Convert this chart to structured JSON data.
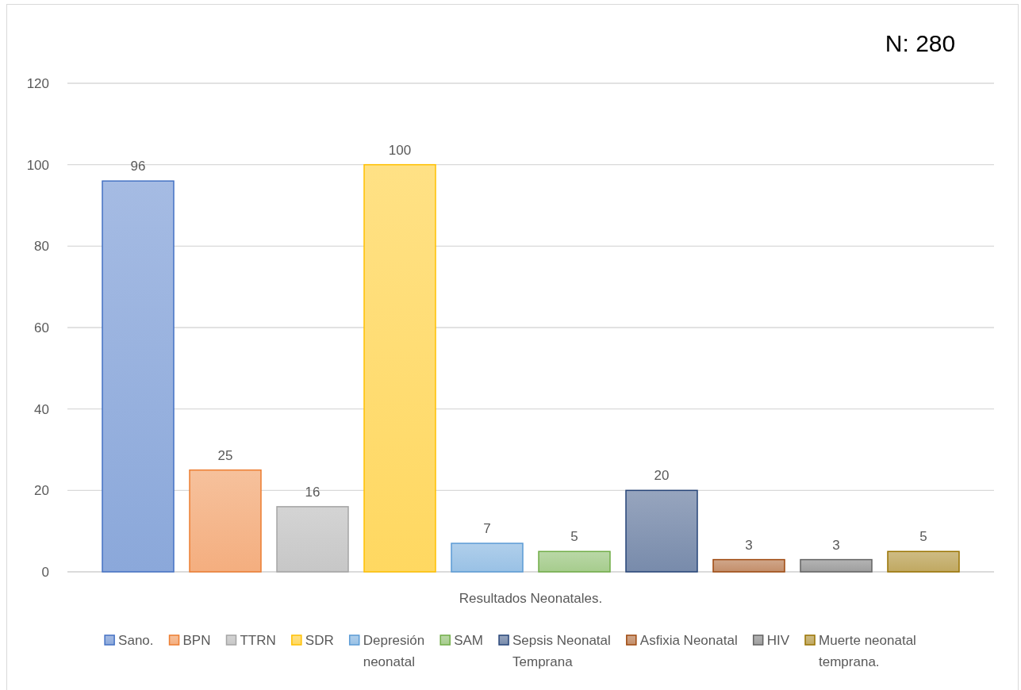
{
  "chart_data": {
    "type": "bar",
    "categories": [
      "Resultados Neonatales."
    ],
    "series": [
      {
        "name": "Sano.",
        "color": "#4472c4",
        "values": [
          96
        ]
      },
      {
        "name": "BPN",
        "color": "#ed7d31",
        "values": [
          25
        ]
      },
      {
        "name": "TTRN",
        "color": "#a5a5a5",
        "values": [
          16
        ]
      },
      {
        "name": "SDR",
        "color": "#ffc000",
        "values": [
          100
        ]
      },
      {
        "name": "Depresión neonatal",
        "color": "#5b9bd5",
        "values": [
          7
        ]
      },
      {
        "name": "SAM",
        "color": "#70ad47",
        "values": [
          5
        ]
      },
      {
        "name": "Sepsis Neonatal Temprana",
        "color": "#264478",
        "values": [
          20
        ]
      },
      {
        "name": "Asfixia Neonatal",
        "color": "#9e480e",
        "values": [
          3
        ]
      },
      {
        "name": "HIV",
        "color": "#636363",
        "values": [
          3
        ]
      },
      {
        "name": "Muerte neonatal temprana.",
        "color": "#997300",
        "values": [
          5
        ]
      }
    ],
    "ylim": [
      0,
      120
    ],
    "yticks": [
      0,
      20,
      40,
      60,
      80,
      100,
      120
    ],
    "grid": "y",
    "legend": "bottom",
    "data_labels": true,
    "annotations": [
      "N: 280"
    ]
  }
}
